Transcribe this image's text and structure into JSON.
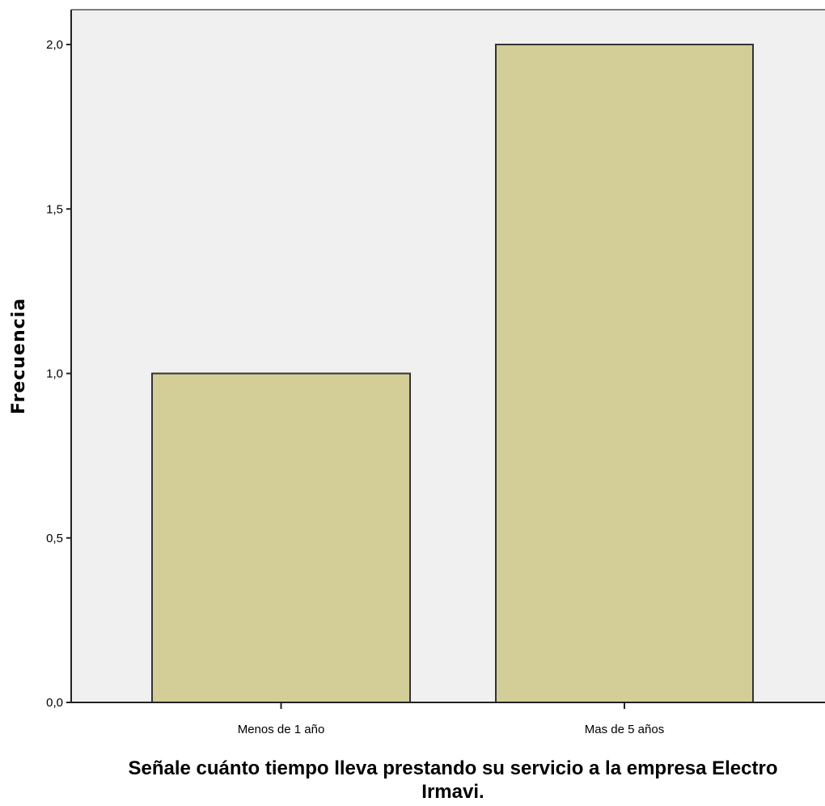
{
  "chart_data": {
    "type": "bar",
    "categories": [
      "Menos de 1 año",
      "Mas de 5 años"
    ],
    "values": [
      1,
      2
    ],
    "title": "",
    "xlabel_lines": [
      "Señale cuánto tiempo lleva prestando su servicio a la empresa Electro",
      "Irmavi."
    ],
    "ylabel": "Frecuencia",
    "ylim": [
      0,
      2.1
    ],
    "yticks": [
      {
        "value": 0,
        "label": "0,0"
      },
      {
        "value": 0.5,
        "label": "0,5"
      },
      {
        "value": 1,
        "label": "1,0"
      },
      {
        "value": 1.5,
        "label": "1,5"
      },
      {
        "value": 2,
        "label": "2,0"
      }
    ],
    "grid": false,
    "colors": {
      "bar_fill": "#d3ce98",
      "bar_stroke": "#333333",
      "plot_bg": "#f0f0f0",
      "axis": "#222222"
    }
  }
}
